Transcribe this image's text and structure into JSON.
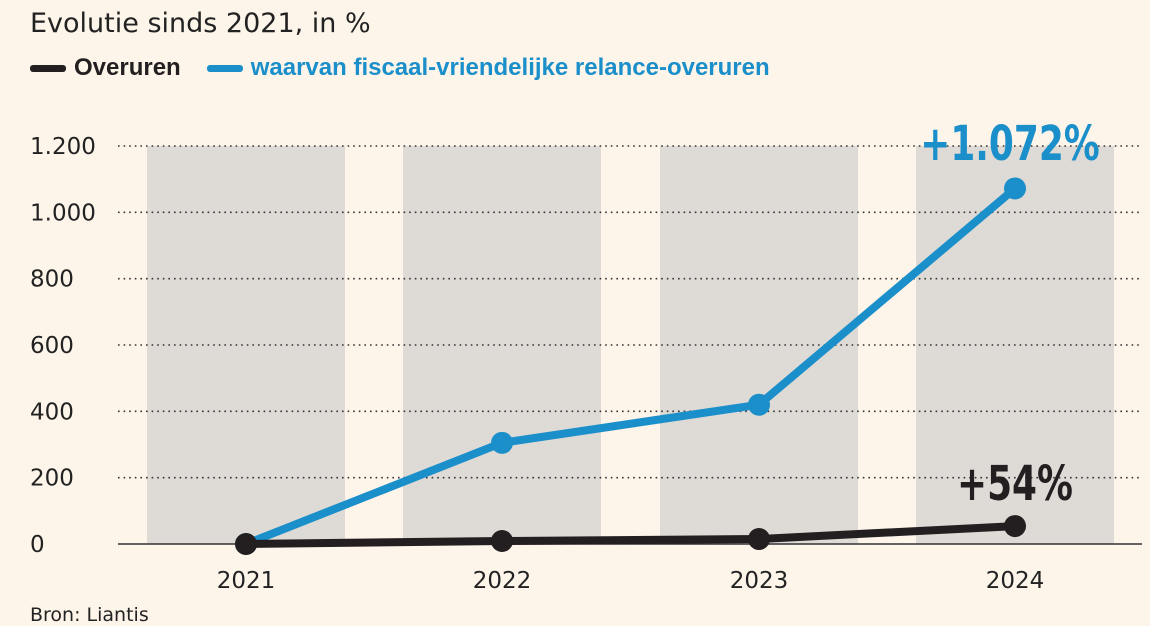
{
  "chart_data": {
    "type": "line",
    "title": "Evolutie sinds 2021, in %",
    "source": "Bron: Liantis",
    "x": [
      "2021",
      "2022",
      "2023",
      "2024"
    ],
    "ylim": [
      0,
      1200
    ],
    "yticks": [
      0,
      200,
      400,
      600,
      800,
      1000,
      1200
    ],
    "ytick_labels": [
      "0",
      "200",
      "400",
      "600",
      "800",
      "1.000",
      "1.200"
    ],
    "grid": true,
    "legend_position": "top-left",
    "series": [
      {
        "name": "Overuren",
        "color": "#231f20",
        "values": [
          0,
          9,
          15,
          54
        ],
        "annotation": "+54%"
      },
      {
        "name": "waarvan fiscaal-vriendelijke relance-overuren",
        "color": "#1a8fca",
        "values": [
          0,
          305,
          420,
          1072
        ],
        "annotation": "+1.072%"
      }
    ],
    "colors": {
      "background": "#fdf5ea",
      "column": "#dedad6"
    }
  }
}
